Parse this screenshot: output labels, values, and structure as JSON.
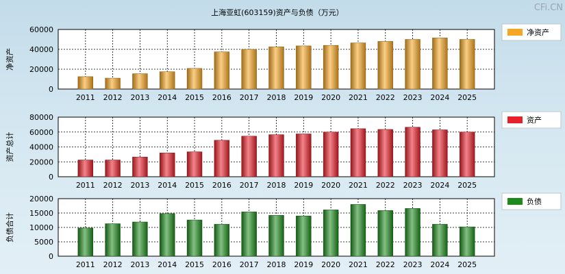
{
  "title": "上海亚虹(603159)资产与负债（万元）",
  "watermark": "CFi.CN",
  "chart_data": [
    {
      "type": "bar",
      "ylabel": "净资产",
      "legend": "净资产",
      "color": "#f5a623",
      "ylim": [
        0,
        60000
      ],
      "yticks": [
        0,
        20000,
        40000,
        60000
      ],
      "categories": [
        "2011",
        "2012",
        "2013",
        "2014",
        "2015",
        "2016",
        "2017",
        "2018",
        "2019",
        "2020",
        "2021",
        "2022",
        "2023",
        "2024",
        "2025"
      ],
      "values": [
        12500,
        11000,
        15500,
        17500,
        20800,
        37500,
        40000,
        42500,
        43500,
        44000,
        46500,
        48000,
        50000,
        51500,
        50000
      ]
    },
    {
      "type": "bar",
      "ylabel": "资产总计",
      "legend": "资产",
      "color": "#e8202a",
      "ylim": [
        0,
        80000
      ],
      "yticks": [
        0,
        20000,
        40000,
        60000,
        80000
      ],
      "categories": [
        "2011",
        "2012",
        "2013",
        "2014",
        "2015",
        "2016",
        "2017",
        "2018",
        "2019",
        "2020",
        "2021",
        "2022",
        "2023",
        "2024",
        "2025"
      ],
      "values": [
        22500,
        22500,
        26500,
        32000,
        33500,
        49000,
        54500,
        56500,
        57500,
        60000,
        64500,
        63500,
        66500,
        63000,
        60000
      ]
    },
    {
      "type": "bar",
      "ylabel": "负债合计",
      "legend": "负债",
      "color": "#1e8a1e",
      "ylim": [
        0,
        20000
      ],
      "yticks": [
        0,
        5000,
        10000,
        15000,
        20000
      ],
      "categories": [
        "2011",
        "2012",
        "2013",
        "2014",
        "2015",
        "2016",
        "2017",
        "2018",
        "2019",
        "2020",
        "2021",
        "2022",
        "2023",
        "2024",
        "2025"
      ],
      "values": [
        9800,
        11300,
        11900,
        14800,
        12600,
        11100,
        15400,
        14200,
        14000,
        16100,
        18000,
        15900,
        16600,
        11100,
        10200
      ]
    }
  ]
}
